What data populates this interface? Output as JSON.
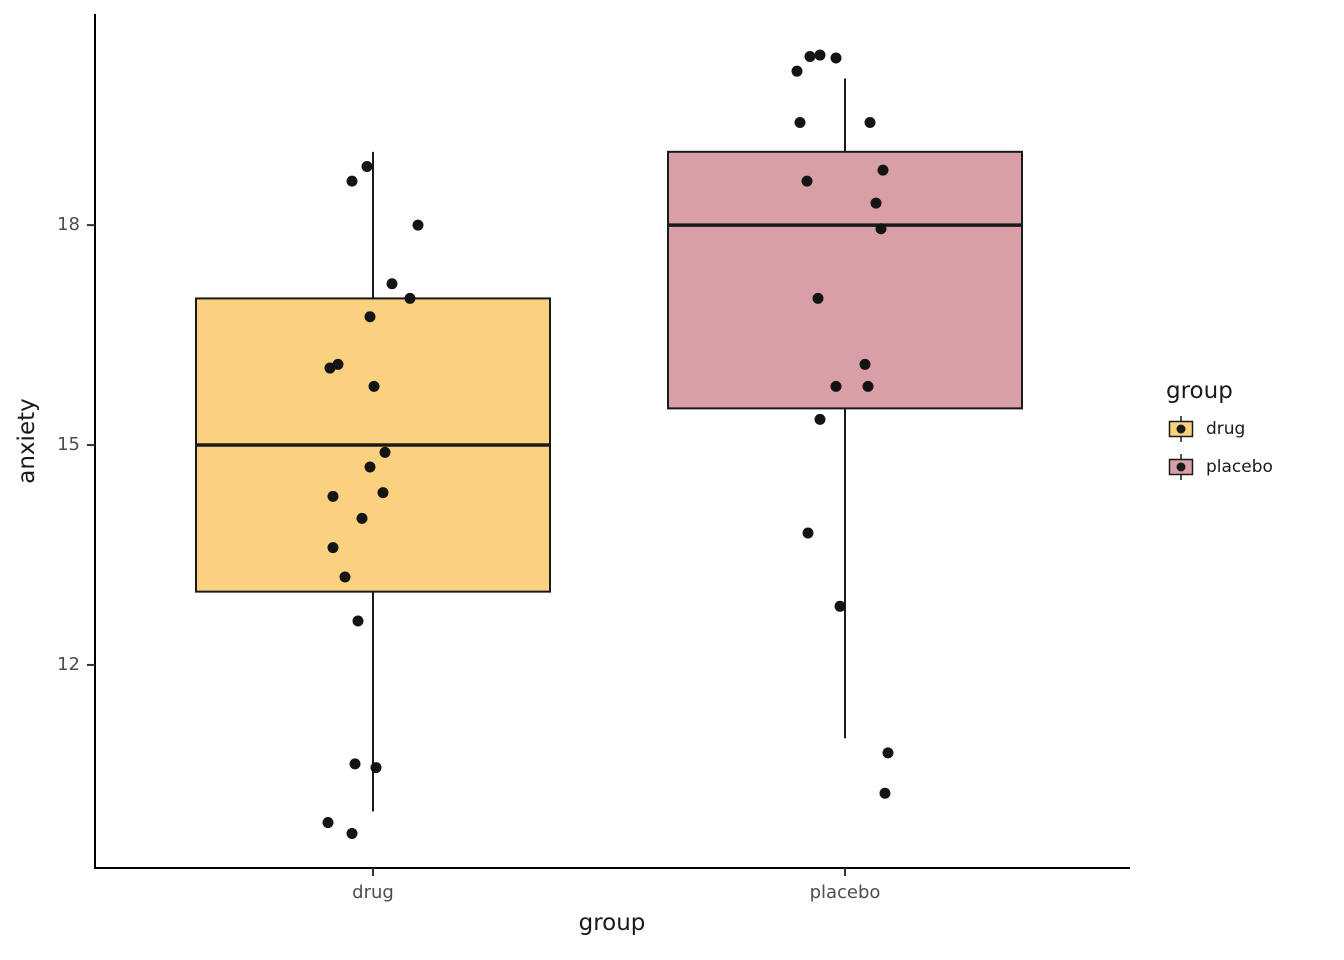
{
  "chart_data": {
    "type": "boxplot",
    "title": "",
    "xlabel": "group",
    "ylabel": "anxiety",
    "legend_title": "group",
    "legend_position": "right",
    "grid": false,
    "ylim": [
      9.23,
      20.88
    ],
    "yticks": [
      "18",
      "15",
      "12"
    ],
    "ytick_values": [
      18,
      15,
      12
    ],
    "categories": [
      "drug",
      "placebo"
    ],
    "series": [
      {
        "name": "drug",
        "fill": "#FAD27F",
        "stats": {
          "lower_whisker": 10.0,
          "q1": 13.0,
          "median": 15.0,
          "q3": 17.0,
          "upper_whisker": 19.0
        },
        "points": [
          {
            "dx": -21,
            "y": 18.6
          },
          {
            "dx": -6,
            "y": 18.8
          },
          {
            "dx": 45,
            "y": 18.0
          },
          {
            "dx": 19,
            "y": 17.2
          },
          {
            "dx": 37,
            "y": 17.0
          },
          {
            "dx": -3,
            "y": 16.75
          },
          {
            "dx": -43,
            "y": 16.05
          },
          {
            "dx": -35,
            "y": 16.1
          },
          {
            "dx": 1,
            "y": 15.8
          },
          {
            "dx": 12,
            "y": 14.9
          },
          {
            "dx": -3,
            "y": 14.7
          },
          {
            "dx": -40,
            "y": 14.3
          },
          {
            "dx": 10,
            "y": 14.35
          },
          {
            "dx": -11,
            "y": 14.0
          },
          {
            "dx": -40,
            "y": 13.6
          },
          {
            "dx": -28,
            "y": 13.2
          },
          {
            "dx": -15,
            "y": 12.6
          },
          {
            "dx": -18,
            "y": 10.65
          },
          {
            "dx": 3,
            "y": 10.6
          },
          {
            "dx": -45,
            "y": 9.85
          },
          {
            "dx": -21,
            "y": 9.7
          }
        ]
      },
      {
        "name": "placebo",
        "fill": "#D8A0A6",
        "stats": {
          "lower_whisker": 11.0,
          "q1": 15.5,
          "median": 18.0,
          "q3": 19.0,
          "upper_whisker": 20.0
        },
        "points": [
          {
            "dx": -48,
            "y": 20.1
          },
          {
            "dx": -35,
            "y": 20.3
          },
          {
            "dx": -25,
            "y": 20.32
          },
          {
            "dx": -9,
            "y": 20.28
          },
          {
            "dx": -45,
            "y": 19.4
          },
          {
            "dx": 25,
            "y": 19.4
          },
          {
            "dx": -38,
            "y": 18.6
          },
          {
            "dx": 38,
            "y": 18.75
          },
          {
            "dx": 31,
            "y": 18.3
          },
          {
            "dx": 36,
            "y": 17.95
          },
          {
            "dx": -27,
            "y": 17.0
          },
          {
            "dx": 20,
            "y": 16.1
          },
          {
            "dx": -9,
            "y": 15.8
          },
          {
            "dx": 23,
            "y": 15.8
          },
          {
            "dx": -25,
            "y": 15.35
          },
          {
            "dx": -37,
            "y": 13.8
          },
          {
            "dx": -5,
            "y": 12.8
          },
          {
            "dx": 43,
            "y": 10.8
          },
          {
            "dx": 40,
            "y": 10.25
          }
        ]
      }
    ]
  }
}
